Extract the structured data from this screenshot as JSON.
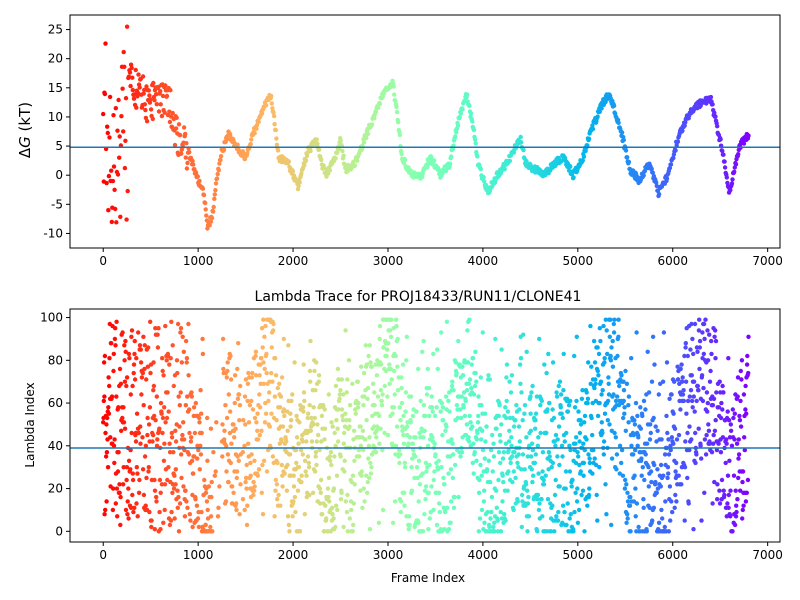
{
  "chart_data": [
    {
      "type": "scatter",
      "title": "",
      "xlabel": "",
      "ylabel": "ΔG (kT)",
      "ylabel_math_symbol": "Δ",
      "ylabel_math_var": "G",
      "ylabel_unit": " (kT)",
      "xlim": [
        -350,
        7130
      ],
      "ylim": [
        -12.5,
        27.5
      ],
      "xticks": [
        0,
        1000,
        2000,
        3000,
        4000,
        5000,
        6000,
        7000
      ],
      "yticks": [
        -10,
        -5,
        0,
        5,
        10,
        15,
        20,
        25
      ],
      "hline": 4.8,
      "hline_color": "#1f77b4",
      "colormap": "rainbow (red at frame 0 → violet at last frame)",
      "n_frames": 6800,
      "grid": false,
      "trace_keypoints": [
        [
          0,
          5
        ],
        [
          30,
          9
        ],
        [
          60,
          0
        ],
        [
          100,
          4
        ],
        [
          150,
          5
        ],
        [
          200,
          12
        ],
        [
          260,
          18
        ],
        [
          320,
          15
        ],
        [
          400,
          14
        ],
        [
          500,
          12
        ],
        [
          600,
          14
        ],
        [
          700,
          12
        ],
        [
          800,
          6
        ],
        [
          900,
          4
        ],
        [
          1000,
          -1
        ],
        [
          1050,
          -2
        ],
        [
          1100,
          -9
        ],
        [
          1150,
          -7
        ],
        [
          1200,
          0
        ],
        [
          1250,
          4
        ],
        [
          1320,
          7
        ],
        [
          1400,
          5
        ],
        [
          1500,
          3
        ],
        [
          1600,
          8
        ],
        [
          1700,
          12
        ],
        [
          1760,
          14
        ],
        [
          1800,
          10
        ],
        [
          1850,
          3
        ],
        [
          1950,
          2
        ],
        [
          2050,
          -2
        ],
        [
          2150,
          4
        ],
        [
          2250,
          6
        ],
        [
          2300,
          2
        ],
        [
          2350,
          0
        ],
        [
          2450,
          3
        ],
        [
          2500,
          6
        ],
        [
          2550,
          1
        ],
        [
          2650,
          2
        ],
        [
          2750,
          6
        ],
        [
          2850,
          10
        ],
        [
          2950,
          14
        ],
        [
          3050,
          16
        ],
        [
          3100,
          10
        ],
        [
          3150,
          3
        ],
        [
          3250,
          0
        ],
        [
          3350,
          0
        ],
        [
          3450,
          3
        ],
        [
          3550,
          0
        ],
        [
          3650,
          2
        ],
        [
          3750,
          10
        ],
        [
          3830,
          14
        ],
        [
          3900,
          8
        ],
        [
          3950,
          2
        ],
        [
          4050,
          -3
        ],
        [
          4150,
          0
        ],
        [
          4250,
          2
        ],
        [
          4350,
          5
        ],
        [
          4400,
          6
        ],
        [
          4450,
          2
        ],
        [
          4550,
          1
        ],
        [
          4650,
          0
        ],
        [
          4750,
          2
        ],
        [
          4850,
          3
        ],
        [
          4950,
          0
        ],
        [
          5050,
          3
        ],
        [
          5150,
          8
        ],
        [
          5250,
          12
        ],
        [
          5330,
          14
        ],
        [
          5450,
          8
        ],
        [
          5550,
          1
        ],
        [
          5650,
          -1
        ],
        [
          5750,
          2
        ],
        [
          5850,
          -3
        ],
        [
          5950,
          0
        ],
        [
          6050,
          6
        ],
        [
          6150,
          10
        ],
        [
          6250,
          12
        ],
        [
          6400,
          13
        ],
        [
          6500,
          6
        ],
        [
          6600,
          -3
        ],
        [
          6700,
          5
        ],
        [
          6800,
          7
        ]
      ],
      "early_scatter_range": {
        "x": [
          0,
          260
        ],
        "y": [
          -11,
          23
        ]
      }
    },
    {
      "type": "scatter",
      "title": "Lambda Trace for PROJ18433/RUN11/CLONE41",
      "xlabel": "Frame Index",
      "ylabel": "Lambda Index",
      "xlim": [
        -350,
        7130
      ],
      "ylim": [
        -5,
        104
      ],
      "xticks": [
        0,
        1000,
        2000,
        3000,
        4000,
        5000,
        6000,
        7000
      ],
      "yticks": [
        0,
        20,
        40,
        60,
        80,
        100
      ],
      "hline": 39,
      "hline_color": "#1f77b4",
      "colormap": "rainbow (red at frame 0 → violet at last frame)",
      "n_frames": 6800,
      "lambda_range": [
        0,
        99
      ],
      "grid": false
    }
  ]
}
